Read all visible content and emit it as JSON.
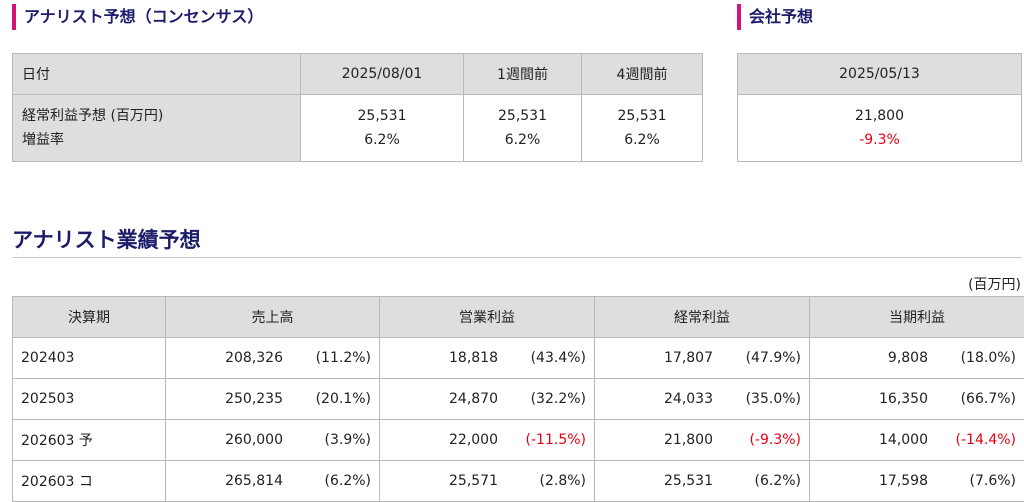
{
  "consensus": {
    "title": "アナリスト予想（コンセンサス）",
    "headers": [
      "日付",
      "2025/08/01",
      "1週間前",
      "4週間前"
    ],
    "row_labels": [
      "経常利益予想 (百万円)",
      "増益率"
    ],
    "values": [
      {
        "profit": "25,531",
        "growth": "6.2%"
      },
      {
        "profit": "25,531",
        "growth": "6.2%"
      },
      {
        "profit": "25,531",
        "growth": "6.2%"
      }
    ]
  },
  "company": {
    "title": "会社予想",
    "date": "2025/05/13",
    "profit": "21,800",
    "growth": "-9.3%",
    "negative_color": "#e60012"
  },
  "performance": {
    "title": "アナリスト業績予想",
    "unit": "(百万円)",
    "headers": [
      "決算期",
      "売上高",
      "営業利益",
      "経常利益",
      "当期利益"
    ],
    "rows": [
      {
        "period": "202403",
        "cells": [
          [
            "208,326",
            "(11.2%)"
          ],
          [
            "18,818",
            "(43.4%)"
          ],
          [
            "17,807",
            "(47.9%)"
          ],
          [
            "9,808",
            "(18.0%)"
          ]
        ]
      },
      {
        "period": "202503",
        "cells": [
          [
            "250,235",
            "(20.1%)"
          ],
          [
            "24,870",
            "(32.2%)"
          ],
          [
            "24,033",
            "(35.0%)"
          ],
          [
            "16,350",
            "(66.7%)"
          ]
        ]
      },
      {
        "period": "202603 予",
        "cells": [
          [
            "260,000",
            "(3.9%)"
          ],
          [
            "22,000",
            "(-11.5%)"
          ],
          [
            "21,800",
            "(-9.3%)"
          ],
          [
            "14,000",
            "(-14.4%)"
          ]
        ]
      },
      {
        "period": "202603 コ",
        "cells": [
          [
            "265,814",
            "(6.2%)"
          ],
          [
            "25,571",
            "(2.8%)"
          ],
          [
            "25,531",
            "(6.2%)"
          ],
          [
            "17,598",
            "(7.6%)"
          ]
        ]
      }
    ]
  },
  "colors": {
    "accent": "#d4147a",
    "heading": "#1c1c6b",
    "header_bg": "#dedede"
  }
}
